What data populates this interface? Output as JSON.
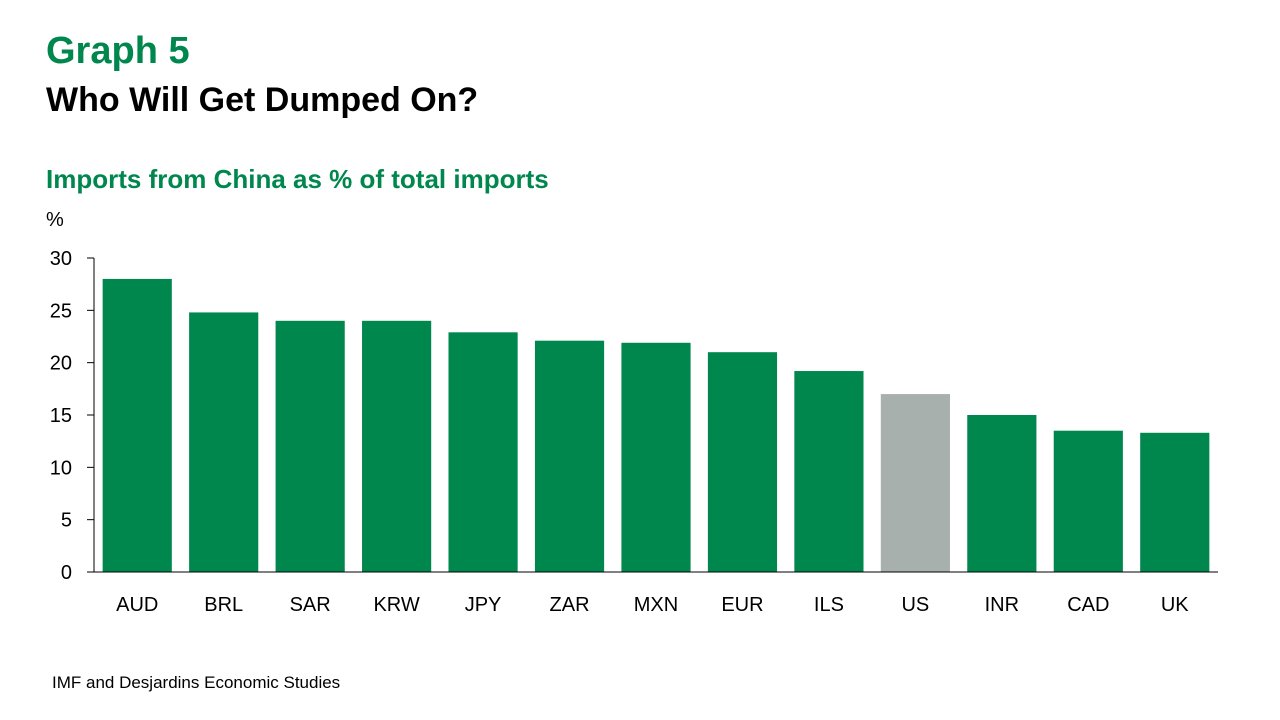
{
  "header": {
    "graph_label": "Graph 5",
    "title": "Who Will Get Dumped On?"
  },
  "source": "IMF and Desjardins Economic Studies",
  "colors": {
    "accent": "#00874D",
    "highlight": "#A8B0AD",
    "axis": "#000000"
  },
  "chart_data": {
    "type": "bar",
    "title": "Imports from China as % of total imports",
    "ylabel": "%",
    "xlabel": "",
    "ylim": [
      0,
      30
    ],
    "yticks": [
      0,
      5,
      10,
      15,
      20,
      25,
      30
    ],
    "categories": [
      "AUD",
      "BRL",
      "SAR",
      "KRW",
      "JPY",
      "ZAR",
      "MXN",
      "EUR",
      "ILS",
      "US",
      "INR",
      "CAD",
      "UK"
    ],
    "values": [
      28,
      24.8,
      24,
      24,
      22.9,
      22.1,
      21.9,
      21,
      19.2,
      17,
      15,
      13.5,
      13.3
    ],
    "highlight": [
      "US"
    ],
    "grid": false,
    "legend": "none"
  }
}
